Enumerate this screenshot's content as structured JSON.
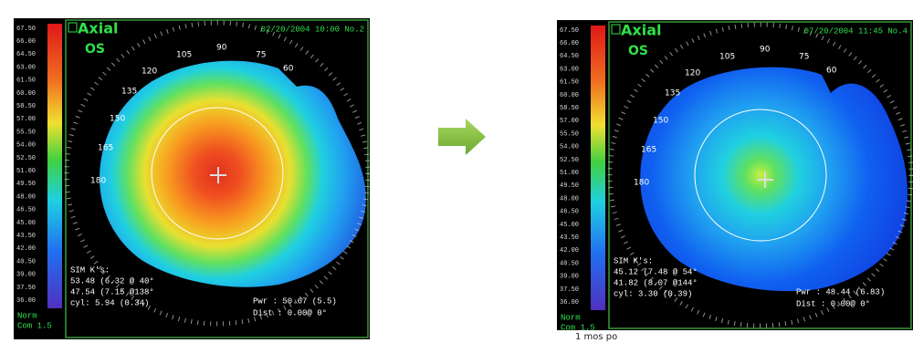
{
  "panels": [
    {
      "title": "Axial",
      "eye": "OS",
      "date": "02/20/2004 10:00 No.2",
      "scale_labels": [
        "67.50",
        "66.00",
        "64.50",
        "63.00",
        "61.50",
        "60.00",
        "58.50",
        "57.00",
        "55.50",
        "54.00",
        "52.50",
        "51.00",
        "49.50",
        "48.00",
        "46.50",
        "45.00",
        "43.50",
        "42.00",
        "40.50",
        "39.00",
        "37.50",
        "36.00"
      ],
      "scale_footer": [
        "Norm",
        "Com 1.5"
      ],
      "angles": [
        "105",
        "90",
        "75",
        "60",
        "120",
        "135",
        "150",
        "165",
        "180"
      ],
      "sim_k": [
        "SIM K's:",
        "53.48 (6.32 @ 40°",
        "47.54 (7.15 @138°",
        "cyl: 5.94 (0.34)"
      ],
      "power": [
        "Pwr : 50.67 (5.5)",
        "Dist : 0.00@ 0°"
      ]
    },
    {
      "title": "Axial",
      "eye": "OS",
      "date": "07/20/2004 11:45 No.4",
      "scale_labels": [
        "67.50",
        "66.00",
        "64.50",
        "63.00",
        "61.50",
        "60.00",
        "58.50",
        "57.00",
        "55.50",
        "54.00",
        "52.50",
        "51.00",
        "49.50",
        "48.00",
        "46.50",
        "45.00",
        "43.50",
        "42.00",
        "40.50",
        "39.00",
        "37.50",
        "36.00"
      ],
      "scale_footer": [
        "Norm",
        "Com 1.5"
      ],
      "angles": [
        "105",
        "90",
        "75",
        "60",
        "120",
        "135",
        "150",
        "165",
        "180"
      ],
      "sim_k": [
        "SIM K's:",
        "45.12 (7.48 @ 54°",
        "41.82 (8.07 @144°",
        "cyl: 3.30 (0.39)"
      ],
      "power": [
        "Pwr : 48.44 (6.83)",
        "Dist : 0.00@ 0°"
      ],
      "caption": "1 mos po"
    }
  ]
}
